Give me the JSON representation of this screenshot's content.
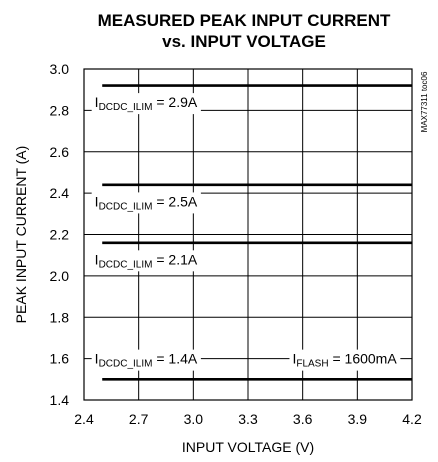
{
  "chart_data": {
    "type": "line",
    "title": [
      "MEASURED PEAK INPUT CURRENT",
      "vs. INPUT VOLTAGE"
    ],
    "xlabel": "INPUT VOLTAGE (V)",
    "ylabel": "PEAK INPUT CURRENT (A)",
    "xlim": [
      2.4,
      4.2
    ],
    "ylim": [
      1.4,
      3.0
    ],
    "xticks": [
      "2.4",
      "2.7",
      "3.0",
      "3.3",
      "3.6",
      "3.9",
      "4.2"
    ],
    "yticks": [
      "1.4",
      "1.6",
      "1.8",
      "2.0",
      "2.2",
      "2.4",
      "2.6",
      "2.8",
      "3.0"
    ],
    "grid": true,
    "part_number": "MAX77311 toc06",
    "series": [
      {
        "x": [
          2.5,
          4.2
        ],
        "y": [
          2.92,
          2.92
        ]
      },
      {
        "x": [
          2.5,
          4.2
        ],
        "y": [
          2.44,
          2.44
        ]
      },
      {
        "x": [
          2.5,
          4.2
        ],
        "y": [
          2.16,
          2.16
        ]
      },
      {
        "x": [
          2.5,
          4.2
        ],
        "y": [
          1.5,
          1.5
        ]
      }
    ],
    "annotations": [
      {
        "main": "I",
        "sub": "DCDC_ILIM",
        "rest": " = 2.9A",
        "x": 2.74,
        "y": 2.84
      },
      {
        "main": "I",
        "sub": "DCDC_ILIM",
        "rest": " = 2.5A",
        "x": 2.74,
        "y": 2.36
      },
      {
        "main": "I",
        "sub": "DCDC_ILIM",
        "rest": " = 2.1A",
        "x": 2.74,
        "y": 2.08
      },
      {
        "main": "I",
        "sub": "DCDC_ILIM",
        "rest": " = 1.4A",
        "x": 2.74,
        "y": 1.6
      },
      {
        "main": "I",
        "sub": "FLASH",
        "rest": " = 1600mA",
        "x": 3.83,
        "y": 1.6
      }
    ]
  }
}
